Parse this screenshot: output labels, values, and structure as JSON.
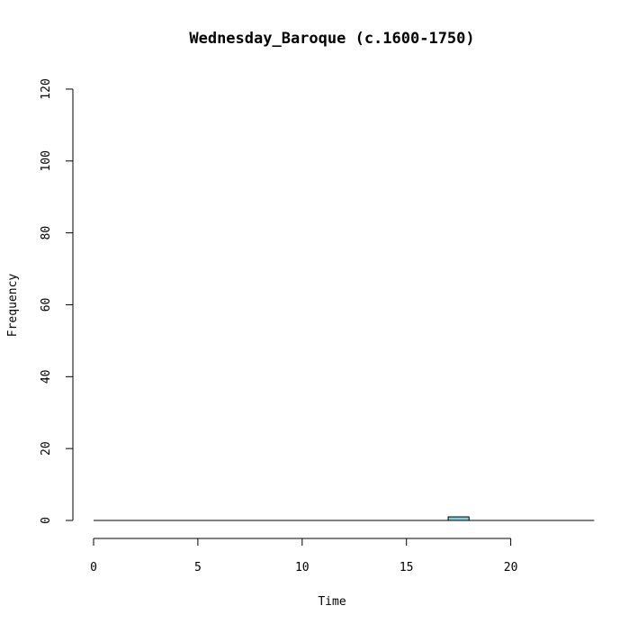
{
  "chart_data": {
    "type": "bar",
    "title": "Wednesday_Baroque (c.1600-1750)",
    "xlabel": "Time",
    "ylabel": "Frequency",
    "xlim": [
      0,
      24
    ],
    "ylim": [
      0,
      120
    ],
    "x_ticks": [
      0,
      5,
      10,
      15,
      20
    ],
    "y_ticks": [
      0,
      20,
      40,
      60,
      80,
      100,
      120
    ],
    "bin_width": 1,
    "bins": [
      {
        "start": 0,
        "end": 1,
        "count": 0
      },
      {
        "start": 1,
        "end": 2,
        "count": 0
      },
      {
        "start": 2,
        "end": 3,
        "count": 0
      },
      {
        "start": 3,
        "end": 4,
        "count": 0
      },
      {
        "start": 4,
        "end": 5,
        "count": 0
      },
      {
        "start": 5,
        "end": 6,
        "count": 0
      },
      {
        "start": 6,
        "end": 7,
        "count": 0
      },
      {
        "start": 7,
        "end": 8,
        "count": 0
      },
      {
        "start": 8,
        "end": 9,
        "count": 0
      },
      {
        "start": 9,
        "end": 10,
        "count": 0
      },
      {
        "start": 10,
        "end": 11,
        "count": 0
      },
      {
        "start": 11,
        "end": 12,
        "count": 0
      },
      {
        "start": 12,
        "end": 13,
        "count": 0
      },
      {
        "start": 13,
        "end": 14,
        "count": 0
      },
      {
        "start": 14,
        "end": 15,
        "count": 0
      },
      {
        "start": 15,
        "end": 16,
        "count": 0
      },
      {
        "start": 16,
        "end": 17,
        "count": 0
      },
      {
        "start": 17,
        "end": 18,
        "count": 1
      },
      {
        "start": 18,
        "end": 19,
        "count": 0
      },
      {
        "start": 19,
        "end": 20,
        "count": 0
      },
      {
        "start": 20,
        "end": 21,
        "count": 0
      },
      {
        "start": 21,
        "end": 22,
        "count": 0
      },
      {
        "start": 22,
        "end": 23,
        "count": 0
      },
      {
        "start": 23,
        "end": 24,
        "count": 0
      }
    ],
    "bar_color": "#7ecfe0",
    "bar_border_color": "#000000",
    "grid": false
  }
}
